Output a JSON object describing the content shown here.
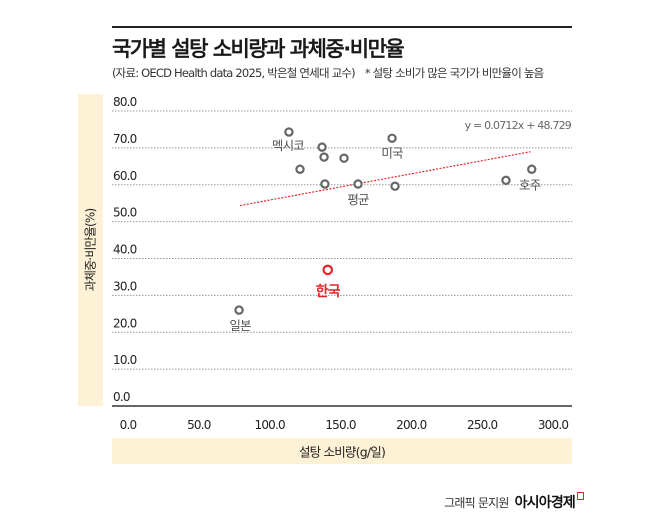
{
  "title": "국가별 설탕 소비량과 과체중·비만율",
  "subtitle": "(자료: OECD Health data 2025, 박은철 연세대 교수)",
  "note": "* 설탕 소비가 많은 국가가 비만율이 높음",
  "credit": {
    "text": "그래픽 문지원",
    "brand": "아시아경제"
  },
  "colors": {
    "point": "#666666",
    "highlight": "#e5262b",
    "trendline": "#e5262b",
    "axis_band": "#fdf2d6"
  },
  "chart_data": {
    "type": "scatter",
    "xlabel": "설탕 소비량(g/일)",
    "ylabel": "과체중·비만율(%)",
    "xlim": [
      0,
      300
    ],
    "ylim": [
      0,
      80
    ],
    "xticks": [
      "0.0",
      "50.0",
      "100.0",
      "150.0",
      "200.0",
      "250.0",
      "300.0"
    ],
    "yticks": [
      "0.0",
      "10.0",
      "20.0",
      "30.0",
      "40.0",
      "50.0",
      "60.0",
      "70.0",
      "80.0"
    ],
    "grid": "horizontal dotted",
    "points": [
      {
        "x": 113.6,
        "y": 74.3,
        "label": "멕시코"
      },
      {
        "x": 121.4,
        "y": 64.2,
        "label": ""
      },
      {
        "x": 137.0,
        "y": 70.2,
        "label": ""
      },
      {
        "x": 138.4,
        "y": 67.5,
        "label": ""
      },
      {
        "x": 139.0,
        "y": 60.2,
        "label": ""
      },
      {
        "x": 152.5,
        "y": 67.2,
        "label": ""
      },
      {
        "x": 186.4,
        "y": 72.6,
        "label": "미국"
      },
      {
        "x": 162.4,
        "y": 60.2,
        "label": "평균"
      },
      {
        "x": 188.5,
        "y": 59.6,
        "label": ""
      },
      {
        "x": 266.8,
        "y": 61.2,
        "label": ""
      },
      {
        "x": 285.0,
        "y": 64.2,
        "label": "호주"
      },
      {
        "x": 78.4,
        "y": 26.0,
        "label": "일본"
      },
      {
        "x": 141.0,
        "y": 36.9,
        "label": "한국",
        "highlight": true
      }
    ],
    "trendline": {
      "equation": "y = 0.0712x + 48.729",
      "slope": 0.0712,
      "intercept": 48.729,
      "x_range": [
        79,
        284
      ]
    }
  }
}
